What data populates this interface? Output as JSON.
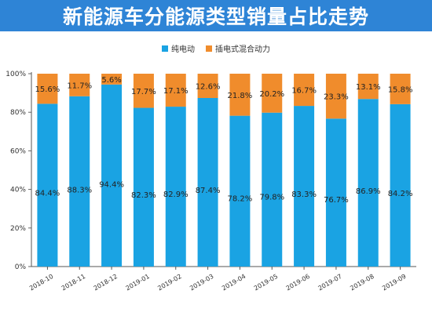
{
  "header": {
    "title": "新能源车分能源类型销量占比走势"
  },
  "colors": {
    "ev": "#1aa3e3",
    "phev": "#f08c2c",
    "header": "#2e84d6"
  },
  "chart_data": {
    "type": "bar",
    "stacked": true,
    "title": "新能源车分能源类型销量占比走势",
    "categories": [
      "2018-10",
      "2018-11",
      "2018-12",
      "2019-01",
      "2019-02",
      "2019-03",
      "2019-04",
      "2019-05",
      "2019-06",
      "2019-07",
      "2019-08",
      "2019-09"
    ],
    "series": [
      {
        "name": "纯电动",
        "values": [
          84.4,
          88.3,
          94.4,
          82.3,
          82.9,
          87.4,
          78.2,
          79.8,
          83.3,
          76.7,
          86.9,
          84.2
        ],
        "labels": [
          "84.4%",
          "88.3%",
          "94.4%",
          "82.3%",
          "82.9%",
          "87.4%",
          "78.2%",
          "79.8%",
          "83.3%",
          "76.7%",
          "86.9%",
          "84.2%"
        ]
      },
      {
        "name": "插电式混合动力",
        "values": [
          15.6,
          11.7,
          5.6,
          17.7,
          17.1,
          12.6,
          21.8,
          20.2,
          16.7,
          23.3,
          13.1,
          15.8
        ],
        "labels": [
          "15.6%",
          "11.7%",
          "5.6%",
          "17.7%",
          "17.1%",
          "12.6%",
          "21.8%",
          "20.2%",
          "16.7%",
          "23.3%",
          "13.1%",
          "15.8%"
        ]
      }
    ],
    "yticks": [
      "0%",
      "20%",
      "40%",
      "60%",
      "80%",
      "100%"
    ],
    "ylim": [
      0,
      100
    ],
    "legend": "top-center",
    "grid": false
  }
}
